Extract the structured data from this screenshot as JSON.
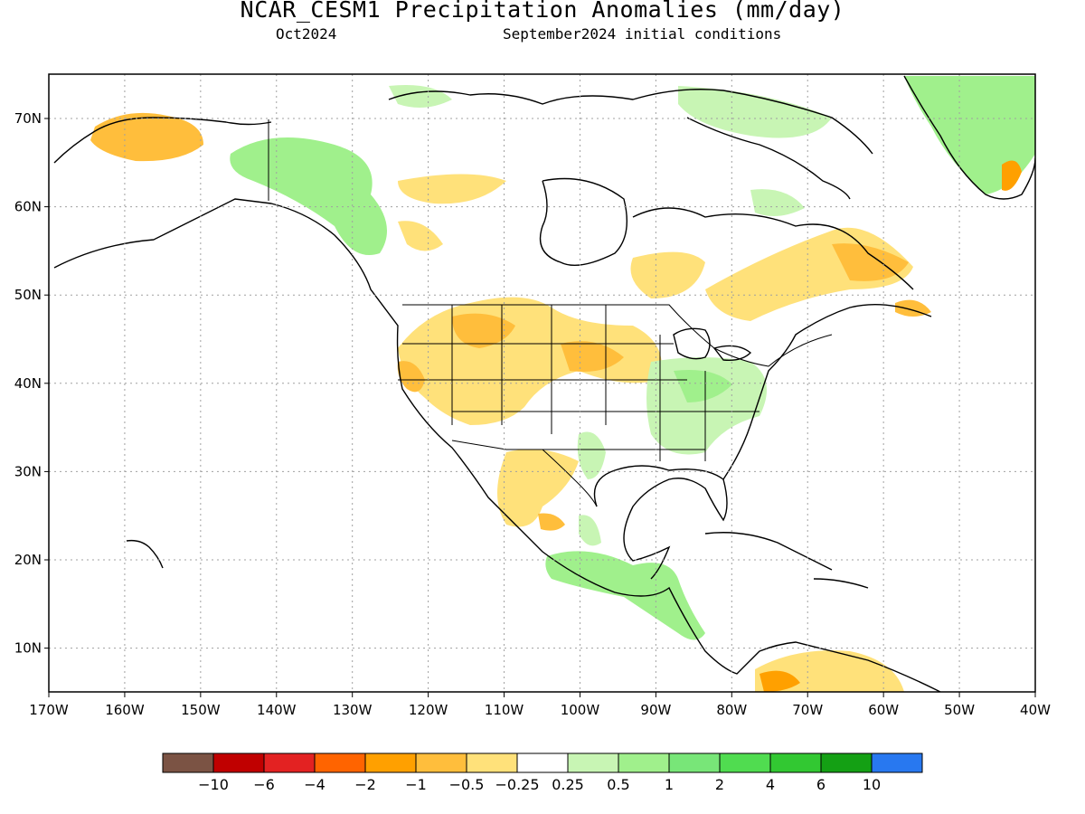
{
  "title": "NCAR_CESM1 Precipitation Anomalies (mm/day)",
  "subtitle_left": "Oct2024",
  "subtitle_right": "September2024 initial conditions",
  "map": {
    "lon_labels": [
      "170W",
      "160W",
      "150W",
      "140W",
      "130W",
      "120W",
      "110W",
      "100W",
      "90W",
      "80W",
      "70W",
      "60W",
      "50W",
      "40W"
    ],
    "lat_labels": [
      "70N",
      "60N",
      "50N",
      "40N",
      "30N",
      "20N",
      "10N"
    ],
    "grid": "dotted"
  },
  "colorbar": {
    "colors": [
      "#7b5344",
      "#c00000",
      "#e32222",
      "#ff6400",
      "#ffa000",
      "#ffbe3c",
      "#ffe17a",
      "#ffffff",
      "#c8f5b4",
      "#a0f08c",
      "#78e678",
      "#50dc50",
      "#32c832",
      "#14a014",
      "#2878f0"
    ],
    "labels": [
      "−10",
      "−6",
      "−4",
      "−2",
      "−1",
      "−0.5",
      "−0.25",
      "0.25",
      "0.5",
      "1",
      "2",
      "4",
      "6",
      "10"
    ]
  },
  "legend_colors": {
    "dry_light": "#ffe17a",
    "dry_mid": "#ffbe3c",
    "dry_strong": "#ffa000",
    "wet_light": "#c8f5b4",
    "wet_mid": "#a0f08c",
    "wet_strong": "#50dc50"
  }
}
